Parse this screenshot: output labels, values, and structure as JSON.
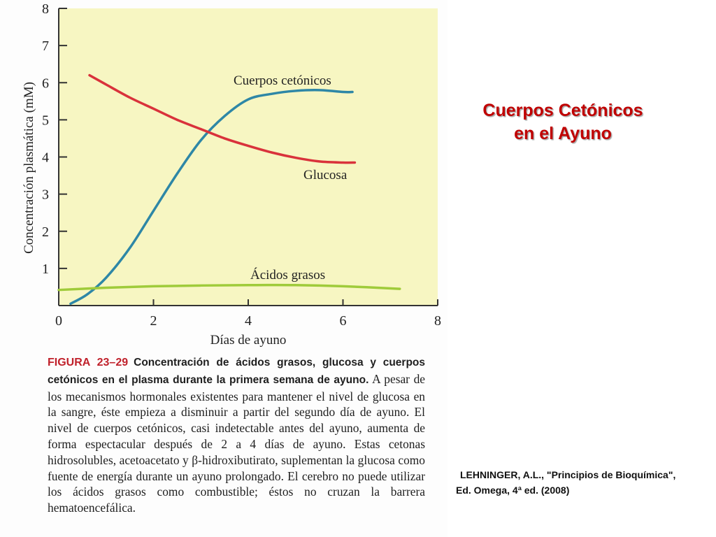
{
  "slide": {
    "title_line1": "Cuerpos Cetónicos",
    "title_line2": "en el Ayuno",
    "citation_line1": "LEHNINGER, A.L., \"Principios de Bioquímica\",",
    "citation_line2": "Ed. Omega, 4ª ed. (2008)"
  },
  "caption": {
    "figure_label": "FIGURA 23–29",
    "bold_text": "Concentración de ácidos grasos, glucosa y cuerpos cetónicos en el plasma durante la primera semana de ayuno.",
    "body_text": "A pesar de los mecanismos hormonales existentes para mantener el nivel de glucosa en la sangre, éste empieza a disminuir a partir del segundo día de ayuno. El nivel de cuerpos cetónicos, casi indetectable antes del ayuno, aumenta de forma espectacular después de 2 a 4 días de ayuno. Estas cetonas hidrosolubles, acetoacetato y β-hidroxibutirato, suplementan la glucosa como fuente de energía durante un ayuno prolongado. El cerebro no puede utilizar los ácidos grasos como combustible; éstos no cruzan la barrera hematoencefálica."
  },
  "colors": {
    "plot_background": "#f7f6c2",
    "glucosa": "#d9323b",
    "cuerpos_cetonicos": "#2e87a6",
    "acidos_grasos": "#9fcb3a",
    "axis": "#333333",
    "title": "#c00000",
    "figure_label": "#c0212b"
  },
  "chart_data": {
    "type": "line",
    "xlabel": "Días de ayuno",
    "ylabel": "Concentración plasmática (mM)",
    "xlim": [
      0,
      8
    ],
    "ylim": [
      0,
      8
    ],
    "xticks": [
      0,
      2,
      4,
      6,
      8
    ],
    "yticks": [
      1,
      2,
      3,
      4,
      5,
      6,
      7,
      8
    ],
    "grid": false,
    "legend": "inline labels",
    "series": [
      {
        "name": "Cuerpos cetónicos",
        "x": [
          0.25,
          0.6,
          1.0,
          1.5,
          2.0,
          2.5,
          3.0,
          3.5,
          4.0,
          4.5,
          5.0,
          5.5,
          6.0,
          6.2
        ],
        "y": [
          0.05,
          0.3,
          0.75,
          1.55,
          2.55,
          3.55,
          4.45,
          5.1,
          5.55,
          5.7,
          5.78,
          5.8,
          5.75,
          5.75
        ]
      },
      {
        "name": "Glucosa",
        "x": [
          0.65,
          1.0,
          1.5,
          2.0,
          2.5,
          3.0,
          3.5,
          4.0,
          4.5,
          5.0,
          5.5,
          6.0,
          6.25
        ],
        "y": [
          6.2,
          5.95,
          5.6,
          5.3,
          5.0,
          4.75,
          4.5,
          4.3,
          4.12,
          3.98,
          3.88,
          3.85,
          3.85
        ]
      },
      {
        "name": "Ácidos grasos",
        "x": [
          0.0,
          1.0,
          2.0,
          3.0,
          4.0,
          5.0,
          6.0,
          7.2
        ],
        "y": [
          0.42,
          0.48,
          0.52,
          0.54,
          0.55,
          0.55,
          0.52,
          0.45
        ]
      }
    ]
  }
}
